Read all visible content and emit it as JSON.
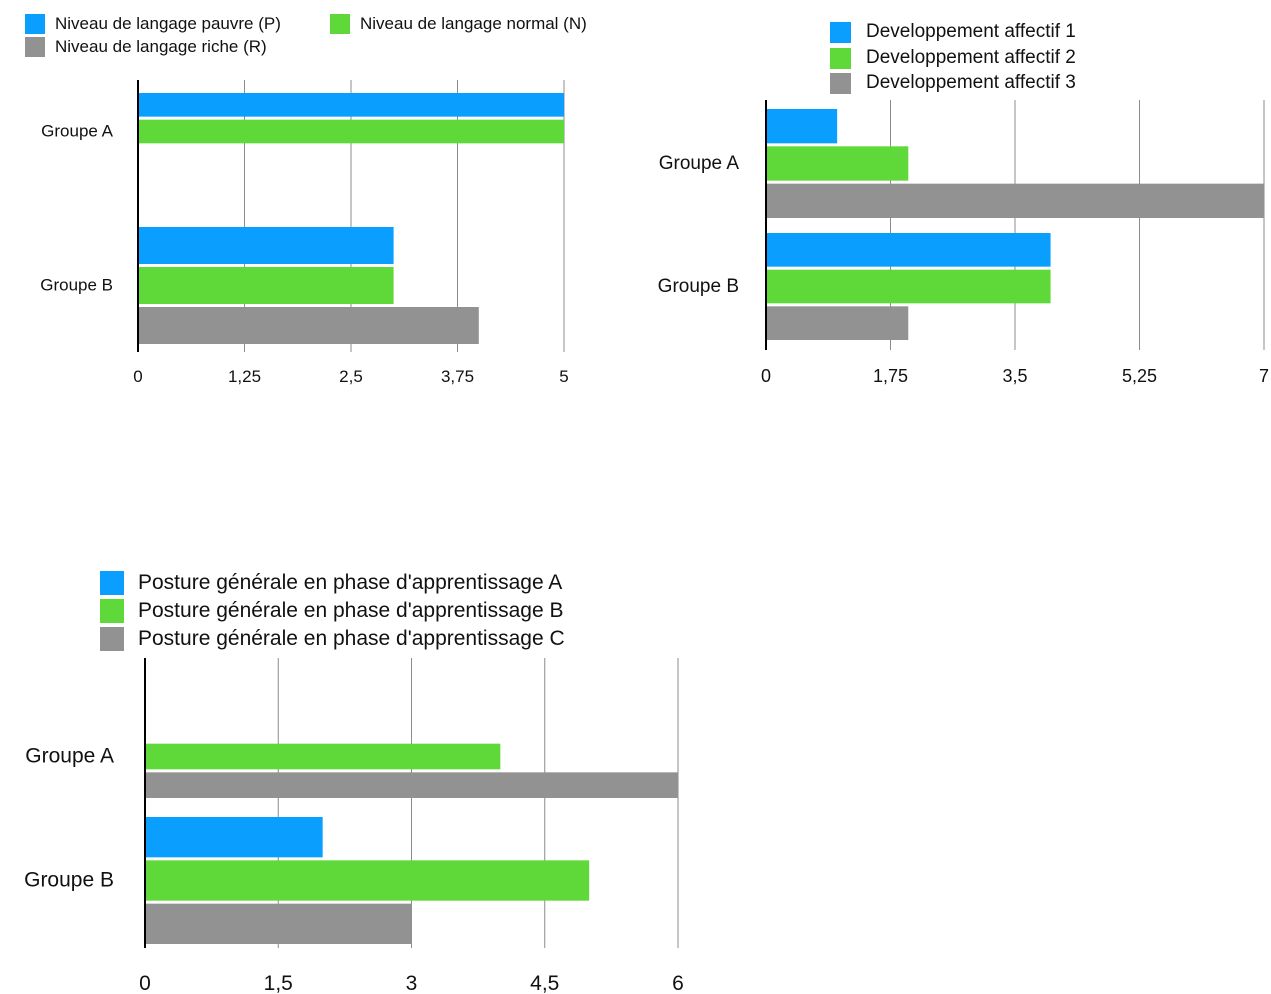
{
  "chart_data": [
    {
      "type": "bar",
      "orientation": "horizontal",
      "categories": [
        "Groupe A",
        "Groupe B"
      ],
      "series": [
        {
          "name": "Niveau de langage pauvre (P)",
          "color": "#0a9fff",
          "values": [
            5,
            3
          ]
        },
        {
          "name": "Niveau de langage normal (N)",
          "color": "#5fd83a",
          "values": [
            5,
            3
          ]
        },
        {
          "name": "Niveau de langage riche (R)",
          "color": "#929292",
          "values": [
            0,
            4
          ]
        }
      ],
      "xlim": [
        0,
        5
      ],
      "xticks": [
        0,
        1.25,
        2.5,
        3.75,
        5
      ],
      "xtick_labels": [
        "0",
        "1,25",
        "2,5",
        "3,75",
        "5"
      ],
      "grid": true,
      "legend": "top"
    },
    {
      "type": "bar",
      "orientation": "horizontal",
      "categories": [
        "Groupe A",
        "Groupe B"
      ],
      "series": [
        {
          "name": "Developpement affectif  1",
          "color": "#0a9fff",
          "values": [
            1,
            4
          ]
        },
        {
          "name": "Developpement affectif  2",
          "color": "#5fd83a",
          "values": [
            2,
            4
          ]
        },
        {
          "name": "Developpement affectif   3",
          "color": "#929292",
          "values": [
            7,
            2
          ]
        }
      ],
      "xlim": [
        0,
        7
      ],
      "xticks": [
        0,
        1.75,
        3.5,
        5.25,
        7
      ],
      "xtick_labels": [
        "0",
        "1,75",
        "3,5",
        "5,25",
        "7"
      ],
      "grid": true,
      "legend": "top"
    },
    {
      "type": "bar",
      "orientation": "horizontal",
      "categories": [
        "Groupe A",
        "Groupe B"
      ],
      "series": [
        {
          "name": "Posture générale en phase d'apprentissage  A",
          "color": "#0a9fff",
          "values": [
            0,
            2
          ]
        },
        {
          "name": "Posture générale en phase d'apprentissage  B",
          "color": "#5fd83a",
          "values": [
            4,
            5
          ]
        },
        {
          "name": "Posture générale en phase d'apprentissage C",
          "color": "#929292",
          "values": [
            6,
            3
          ]
        }
      ],
      "xlim": [
        0,
        6
      ],
      "xticks": [
        0,
        1.5,
        3,
        4.5,
        6
      ],
      "xtick_labels": [
        "0",
        "1,5",
        "3",
        "4,5",
        "6"
      ],
      "grid": true,
      "legend": "top-left"
    }
  ]
}
